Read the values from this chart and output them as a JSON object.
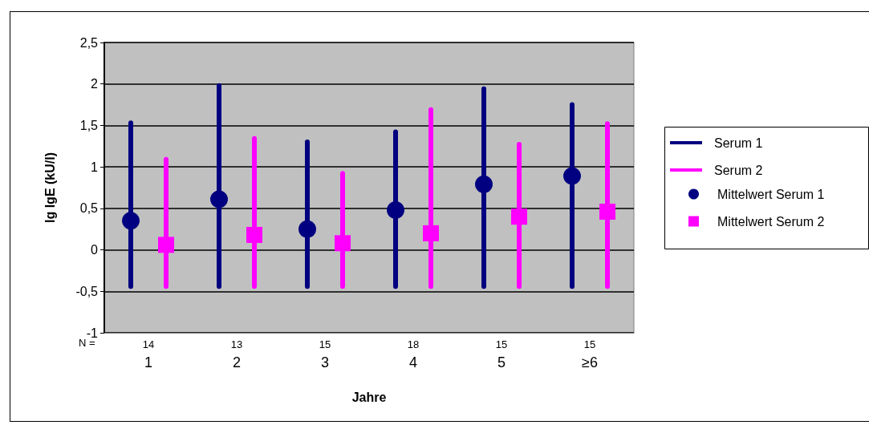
{
  "chart_data": {
    "type": "bar",
    "xlabel": "Jahre",
    "ylabel": "lg IgE (kU/l)",
    "categories": [
      "1",
      "2",
      "3",
      "4",
      "5",
      "≥6"
    ],
    "series": [
      {
        "name": "Serum 1",
        "color": "#000080",
        "base": [
          -0.47,
          -0.47,
          -0.47,
          -0.47,
          -0.47,
          -0.47
        ],
        "values": [
          2.03,
          2.48,
          1.8,
          1.92,
          2.44,
          2.25
        ]
      },
      {
        "name": "Serum 2",
        "color": "#ff00ff",
        "base": [
          -0.47,
          -0.47,
          -0.47,
          -0.47,
          -0.47,
          -0.47
        ],
        "values": [
          1.59,
          1.84,
          1.42,
          2.19,
          1.77,
          2.02
        ]
      },
      {
        "name": "Mittelwert Serum 1",
        "type": "scatter",
        "marker": "circle",
        "color": "#000080",
        "x": [
          "1",
          "2",
          "3",
          "4",
          "5",
          "≥6"
        ],
        "values": [
          0.35,
          0.61,
          0.25,
          0.48,
          0.79,
          0.89
        ]
      },
      {
        "name": "Mittelwert Serum 2",
        "type": "scatter",
        "marker": "square",
        "color": "#ff00ff",
        "x": [
          "1",
          "2",
          "3",
          "4",
          "5",
          "≥6"
        ],
        "values": [
          0.06,
          0.18,
          0.08,
          0.2,
          0.4,
          0.46
        ]
      }
    ],
    "ylim": [
      -1,
      2.5
    ],
    "yticks": [
      {
        "value": -1,
        "label": "-1"
      },
      {
        "value": -0.5,
        "label": "-0,5"
      },
      0,
      {
        "value": 0.5,
        "label": "0,5"
      },
      1,
      {
        "value": 1.5,
        "label": "1,5"
      },
      2,
      {
        "value": 2.5,
        "label": "2,5"
      }
    ],
    "grid": "y",
    "legend": "right",
    "annotations": [
      "N =",
      "14",
      "13",
      "15",
      "18",
      "15",
      "15"
    ]
  }
}
